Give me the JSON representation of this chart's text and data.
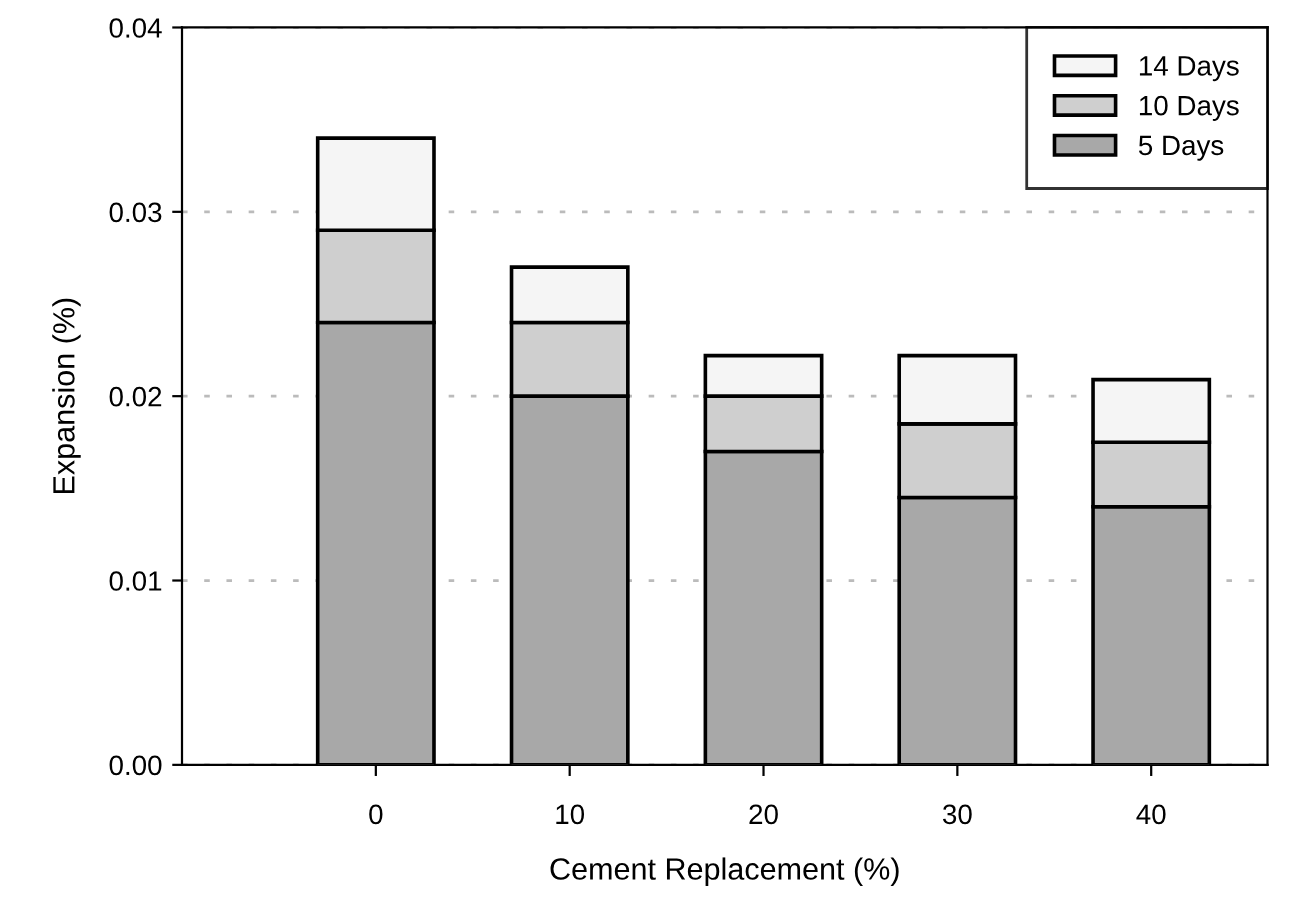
{
  "chart_data": {
    "type": "bar",
    "stacked": true,
    "xlabel": "Cement Replacement (%)",
    "ylabel": "Expansion (%)",
    "categories": [
      "0",
      "10",
      "20",
      "30",
      "40"
    ],
    "series": [
      {
        "name": "5 Days",
        "color": "#a8a8a8",
        "values": [
          0.024,
          0.02,
          0.017,
          0.0145,
          0.014
        ]
      },
      {
        "name": "10 Days",
        "color": "#cfcfcf",
        "values": [
          0.005,
          0.004,
          0.003,
          0.004,
          0.0035
        ]
      },
      {
        "name": "14 Days",
        "color": "#f5f5f5",
        "values": [
          0.005,
          0.003,
          0.0022,
          0.0037,
          0.0034
        ]
      }
    ],
    "ylim": [
      0,
      0.04
    ],
    "yticks": [
      {
        "value": 0,
        "label": "0.00"
      },
      {
        "value": 0.01,
        "label": "0.01"
      },
      {
        "value": 0.02,
        "label": "0.02"
      },
      {
        "value": 0.03,
        "label": "0.03"
      },
      {
        "value": 0.04,
        "label": "0.04"
      }
    ],
    "grid": "y",
    "legend": "top right"
  }
}
